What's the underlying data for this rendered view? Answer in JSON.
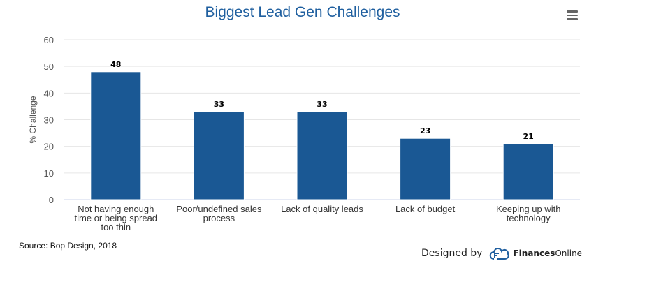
{
  "chart_data": {
    "type": "bar",
    "title": "Biggest Lead Gen Challenges",
    "ylabel": "% Challenge",
    "xlabel": "",
    "categories": [
      [
        "Not having enough",
        "time or being spread",
        "too thin"
      ],
      [
        "Poor/undefined sales",
        "process"
      ],
      [
        "Lack of quality leads"
      ],
      [
        "Lack of budget"
      ],
      [
        "Keeping up with",
        "technology"
      ]
    ],
    "values": [
      48,
      33,
      33,
      23,
      21
    ],
    "ylim": [
      0,
      60
    ],
    "yticks": [
      0,
      10,
      20,
      30,
      40,
      50,
      60
    ],
    "grid": true,
    "bar_color": "#1a5894"
  },
  "source": "Source: Bop Design, 2018",
  "credit": {
    "prefix": "Designed by",
    "brand_bold": "Finances",
    "brand_light": "Online"
  },
  "menu_icon": "hamburger-menu-icon"
}
